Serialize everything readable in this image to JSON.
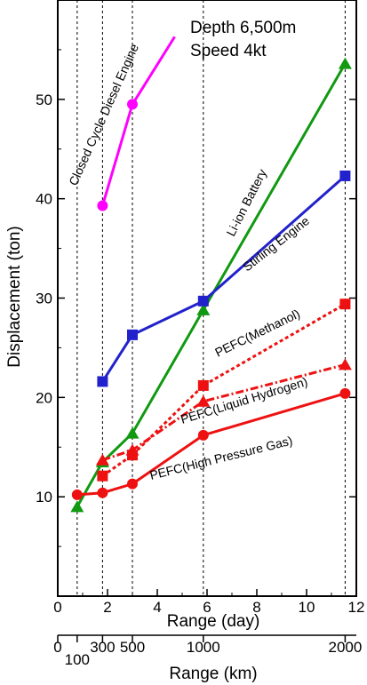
{
  "chart_data": {
    "type": "line",
    "annotation": [
      "Depth 6,500m",
      "Speed 4kt"
    ],
    "xlabel": "Range (day)",
    "xlabel2": "Range (km)",
    "ylabel": "Displacement (ton)",
    "xlim": [
      0,
      12
    ],
    "ylim": [
      0,
      60
    ],
    "x_ticks": [
      0,
      2,
      4,
      6,
      8,
      10,
      12
    ],
    "y_ticks": [
      10,
      20,
      30,
      40,
      50
    ],
    "km_ticks": [
      {
        "label": "0",
        "day": 0
      },
      {
        "label": "100",
        "day": 0.78
      },
      {
        "label": "300",
        "day": 1.8
      },
      {
        "label": "500",
        "day": 3.0
      },
      {
        "label": "1000",
        "day": 5.85
      },
      {
        "label": "2000",
        "day": 11.55
      }
    ],
    "vlines_day": [
      0.78,
      1.8,
      3.0,
      5.85,
      11.55
    ],
    "grid": false,
    "series": [
      {
        "name": "Closed Cycle Diesel Engine",
        "color": "#ff00ff",
        "marker": "circle",
        "dash": "solid",
        "points": [
          [
            1.8,
            39.3
          ],
          [
            3.0,
            49.5
          ],
          [
            4.7,
            56.3
          ]
        ],
        "marker_count": 2
      },
      {
        "name": "Li-ion Battery",
        "color": "#119911",
        "marker": "triangle",
        "dash": "solid",
        "points": [
          [
            0.78,
            9.0
          ],
          [
            1.8,
            13.5
          ],
          [
            3.0,
            16.4
          ],
          [
            5.85,
            28.8
          ],
          [
            11.55,
            53.6
          ]
        ],
        "marker_count": 5
      },
      {
        "name": "Stirling Engine",
        "color": "#2222cc",
        "marker": "square",
        "dash": "solid",
        "points": [
          [
            1.8,
            21.6
          ],
          [
            3.0,
            26.3
          ],
          [
            5.85,
            29.7
          ],
          [
            11.55,
            42.3
          ]
        ],
        "marker_count": 4
      },
      {
        "name": "PEFC(Methanol)",
        "color": "#ee1111",
        "marker": "square",
        "dash": "dotted",
        "points": [
          [
            1.8,
            12.1
          ],
          [
            3.0,
            14.2
          ],
          [
            5.85,
            21.2
          ],
          [
            11.55,
            29.4
          ]
        ],
        "marker_count": 4
      },
      {
        "name": "PEFC(Liquid Hydrogen)",
        "color": "#ee1111",
        "marker": "triangle",
        "dash": "dashdot",
        "points": [
          [
            1.8,
            13.7
          ],
          [
            3.0,
            14.7
          ],
          [
            5.85,
            19.6
          ],
          [
            11.55,
            23.3
          ]
        ],
        "marker_count": 4
      },
      {
        "name": "PEFC(High Pressure Gas)",
        "color": "#ee1111",
        "marker": "circle",
        "dash": "solid",
        "points": [
          [
            0.78,
            10.2
          ],
          [
            1.8,
            10.4
          ],
          [
            3.0,
            11.3
          ],
          [
            5.85,
            16.2
          ],
          [
            11.55,
            20.4
          ]
        ],
        "marker_count": 5
      }
    ]
  }
}
